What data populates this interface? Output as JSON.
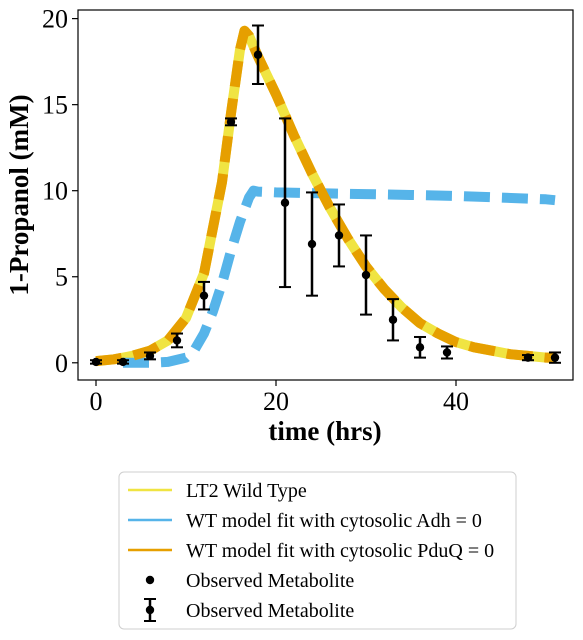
{
  "chart_data": {
    "type": "line",
    "xlabel": "time (hrs)",
    "ylabel": "1-Propanol (mM)",
    "xlim": [
      -2,
      53
    ],
    "ylim": [
      -1,
      20.5
    ],
    "xticks": [
      0,
      20,
      40
    ],
    "yticks": [
      0,
      5,
      10,
      15,
      20
    ],
    "grid": false,
    "legend_position": "below",
    "legend": [
      {
        "label": "LT2 Wild Type",
        "kind": "line",
        "color": "#f0e442"
      },
      {
        "label": "WT model fit with cytosolic Adh = 0",
        "kind": "line",
        "color": "#56b4e9"
      },
      {
        "label": "WT model fit with cytosolic PduQ = 0",
        "kind": "line",
        "color": "#e69f00"
      },
      {
        "label": "Observed Metabolite",
        "kind": "marker",
        "color": "#000000"
      },
      {
        "label": " Observed Metabolite",
        "kind": "errorbar",
        "color": "#000000"
      }
    ],
    "series": [
      {
        "name": "LT2 Wild Type",
        "color": "#f0e442",
        "style": "solid",
        "x": [
          0,
          2,
          4,
          6,
          8,
          10,
          12,
          14,
          15,
          16,
          16.5,
          17,
          18,
          20,
          22,
          24,
          26,
          28,
          30,
          32,
          34,
          36,
          38,
          40,
          42,
          44,
          46,
          48,
          50,
          51
        ],
        "y": [
          0.1,
          0.2,
          0.4,
          0.7,
          1.3,
          2.6,
          5.2,
          10.5,
          14.5,
          18.2,
          19.3,
          19.0,
          17.8,
          15.6,
          13.2,
          11.0,
          9.0,
          7.2,
          5.6,
          4.3,
          3.2,
          2.3,
          1.7,
          1.2,
          0.9,
          0.7,
          0.5,
          0.4,
          0.3,
          0.3
        ]
      },
      {
        "name": "WT model fit with cytosolic Adh = 0",
        "color": "#56b4e9",
        "style": "dashed",
        "x": [
          3,
          6,
          8,
          10,
          11,
          12,
          13,
          14,
          15,
          16,
          17,
          17.5,
          18,
          20,
          25,
          30,
          35,
          40,
          45,
          50,
          51
        ],
        "y": [
          0,
          0,
          0.05,
          0.3,
          0.8,
          1.7,
          3.0,
          4.6,
          6.5,
          8.2,
          9.6,
          10.0,
          9.95,
          9.9,
          9.85,
          9.8,
          9.75,
          9.7,
          9.6,
          9.5,
          9.45
        ]
      },
      {
        "name": "WT model fit with cytosolic PduQ = 0",
        "color": "#e69f00",
        "style": "dashed",
        "x": [
          0,
          2,
          4,
          6,
          8,
          10,
          12,
          14,
          15,
          16,
          16.5,
          17,
          18,
          20,
          22,
          24,
          26,
          28,
          30,
          32,
          34,
          36,
          38,
          40,
          42,
          44,
          46,
          48,
          50,
          51
        ],
        "y": [
          0.1,
          0.2,
          0.4,
          0.7,
          1.3,
          2.6,
          5.2,
          10.5,
          14.5,
          18.2,
          19.3,
          19.0,
          17.8,
          15.6,
          13.2,
          11.0,
          9.0,
          7.2,
          5.6,
          4.3,
          3.2,
          2.3,
          1.7,
          1.2,
          0.9,
          0.7,
          0.5,
          0.4,
          0.3,
          0.3
        ]
      }
    ],
    "observed": {
      "name": "Observed Metabolite",
      "x": [
        0,
        3,
        6,
        9,
        12,
        15,
        18,
        21,
        24,
        27,
        30,
        33,
        36,
        39,
        48,
        51
      ],
      "y": [
        0.05,
        0.05,
        0.4,
        1.3,
        3.9,
        14.0,
        17.9,
        9.3,
        6.9,
        7.4,
        5.1,
        2.5,
        0.9,
        0.6,
        0.3,
        0.3
      ],
      "err": [
        0.1,
        0.1,
        0.2,
        0.4,
        0.8,
        0.2,
        1.7,
        4.9,
        3.0,
        1.8,
        2.3,
        1.2,
        0.6,
        0.35,
        0.15,
        0.3
      ]
    }
  }
}
